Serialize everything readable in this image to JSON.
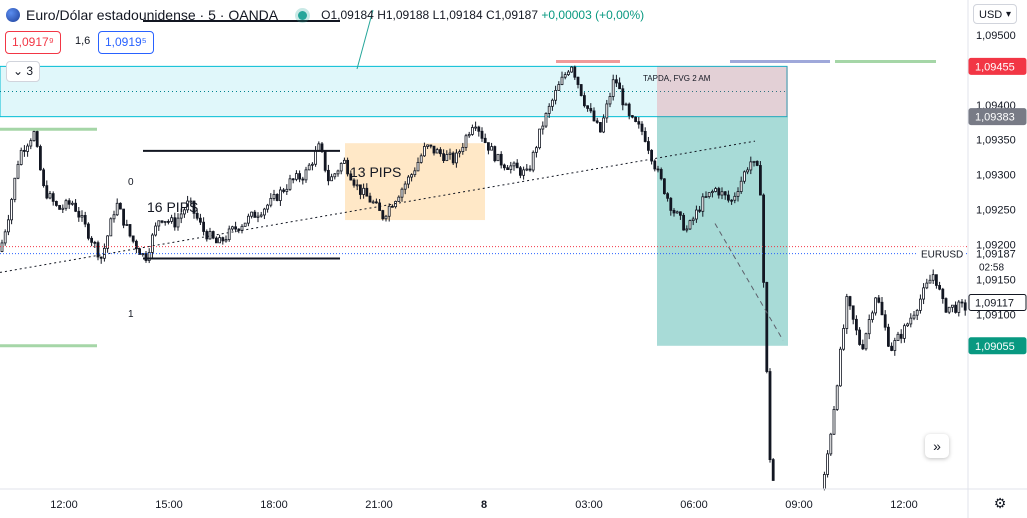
{
  "header": {
    "symbol_title": "Euro/Dólar estadounidense · 5 · OANDA",
    "ohlc": {
      "open": "O1,09184",
      "high": "H1,09188",
      "low": "L1,09184",
      "close": "C1,09187",
      "change": "+0,00003 (+0,00%)"
    }
  },
  "trade": {
    "sell_price": "1,0917⁹",
    "spread": "1,6",
    "buy_price": "1,0919⁵"
  },
  "indicators_toggle": {
    "count": "3"
  },
  "currency_selector": {
    "label": "USD"
  },
  "chart_data": {
    "type": "candlestick",
    "symbol": "EURUSD",
    "ylim": [
      1.0885,
      1.0955
    ],
    "y_ticks": [
      "1,09500",
      "1,09400",
      "1,09350",
      "1,09300",
      "1,09250",
      "1,09200",
      "1,09150",
      "1,09100"
    ],
    "x_ticks": [
      {
        "label": "12:00",
        "major": false
      },
      {
        "label": "15:00",
        "major": false
      },
      {
        "label": "18:00",
        "major": false
      },
      {
        "label": "21:00",
        "major": false
      },
      {
        "label": "8",
        "major": true
      },
      {
        "label": "03:00",
        "major": false
      },
      {
        "label": "06:00",
        "major": false
      },
      {
        "label": "09:00",
        "major": false
      },
      {
        "label": "12:00",
        "major": false
      }
    ],
    "price_path": [
      [
        0,
        1.0919
      ],
      [
        0.01,
        1.0925
      ],
      [
        0.02,
        1.0933
      ],
      [
        0.035,
        1.0936
      ],
      [
        0.045,
        1.0928
      ],
      [
        0.06,
        1.0925
      ],
      [
        0.075,
        1.0926
      ],
      [
        0.09,
        1.0922
      ],
      [
        0.105,
        1.0918
      ],
      [
        0.12,
        1.0926
      ],
      [
        0.135,
        1.0921
      ],
      [
        0.15,
        1.0918
      ],
      [
        0.165,
        1.0924
      ],
      [
        0.18,
        1.0923
      ],
      [
        0.195,
        1.0926
      ],
      [
        0.21,
        1.0922
      ],
      [
        0.225,
        1.092
      ],
      [
        0.24,
        1.0922
      ],
      [
        0.26,
        1.0924
      ],
      [
        0.28,
        1.0926
      ],
      [
        0.3,
        1.0929
      ],
      [
        0.315,
        1.093
      ],
      [
        0.33,
        1.0934
      ],
      [
        0.34,
        1.0929
      ],
      [
        0.355,
        1.0932
      ],
      [
        0.37,
        1.0928
      ],
      [
        0.385,
        1.0926
      ],
      [
        0.395,
        1.0924
      ],
      [
        0.41,
        1.0927
      ],
      [
        0.425,
        1.093
      ],
      [
        0.44,
        1.0934
      ],
      [
        0.455,
        1.0933
      ],
      [
        0.47,
        1.0932
      ],
      [
        0.49,
        1.0938
      ],
      [
        0.5,
        1.0935
      ],
      [
        0.515,
        1.0932
      ],
      [
        0.53,
        1.0931
      ],
      [
        0.545,
        1.093
      ],
      [
        0.56,
        1.0937
      ],
      [
        0.575,
        1.0942
      ],
      [
        0.59,
        1.0946
      ],
      [
        0.605,
        1.094
      ],
      [
        0.62,
        1.0936
      ],
      [
        0.635,
        1.0944
      ],
      [
        0.65,
        1.0938
      ],
      [
        0.665,
        1.0936
      ],
      [
        0.68,
        1.093
      ],
      [
        0.695,
        1.0925
      ],
      [
        0.71,
        1.0922
      ],
      [
        0.725,
        1.0926
      ],
      [
        0.74,
        1.0928
      ],
      [
        0.755,
        1.0926
      ],
      [
        0.765,
        1.0929
      ],
      [
        0.775,
        1.0932
      ],
      [
        0.785,
        1.093
      ],
      [
        0.79,
        1.091
      ],
      [
        0.795,
        1.089
      ],
      [
        0.8,
        1.0885
      ],
      [
        0.85,
        1.0885
      ],
      [
        0.86,
        1.0895
      ],
      [
        0.875,
        1.0912
      ],
      [
        0.89,
        1.0905
      ],
      [
        0.905,
        1.0913
      ],
      [
        0.92,
        1.0905
      ],
      [
        0.935,
        1.0908
      ],
      [
        0.95,
        1.0912
      ],
      [
        0.965,
        1.0916
      ],
      [
        0.975,
        1.0911
      ]
    ],
    "current_price": {
      "value": "1,09187",
      "label": "EURUSD",
      "countdown": "02:58"
    },
    "price_labels": [
      {
        "value": "1,09455",
        "color": "#f23645"
      },
      {
        "value": "1,09383",
        "color": "#787b86"
      },
      {
        "value": "1,09117",
        "color": "#ffffff"
      },
      {
        "value": "1,09055",
        "color": "#089981"
      }
    ],
    "annotations": [
      {
        "text": "16 PIPS"
      },
      {
        "text": "13 PIPS"
      },
      {
        "text": "TAPDA, FVG 2 AM"
      },
      {
        "text": "0"
      },
      {
        "text": "1"
      }
    ],
    "colors": {
      "up": "#131722",
      "down": "#131722",
      "background": "#ffffff"
    }
  }
}
